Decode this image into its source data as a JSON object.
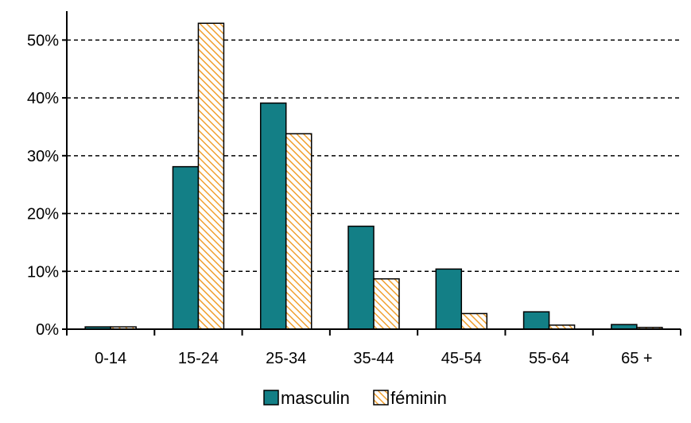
{
  "chart_data": {
    "type": "bar",
    "categories": [
      "0-14",
      "15-24",
      "25-34",
      "35-44",
      "45-54",
      "55-64",
      "65 +"
    ],
    "series": [
      {
        "name": "masculin",
        "values": [
          0.4,
          28.1,
          39.1,
          17.8,
          10.4,
          3.0,
          0.8
        ]
      },
      {
        "name": "féminin",
        "values": [
          0.4,
          52.9,
          33.8,
          8.7,
          2.7,
          0.7,
          0.3
        ]
      }
    ],
    "y_ticks": [
      "0%",
      "10%",
      "20%",
      "30%",
      "40%",
      "50%"
    ],
    "ylim": [
      0,
      55
    ],
    "grid": true,
    "legend_position": "bottom",
    "colors": {
      "masculin": "#137F86",
      "feminin_base": "#FFFFFF",
      "feminin_stripe": "#F0A030",
      "outline": "#000000"
    }
  }
}
